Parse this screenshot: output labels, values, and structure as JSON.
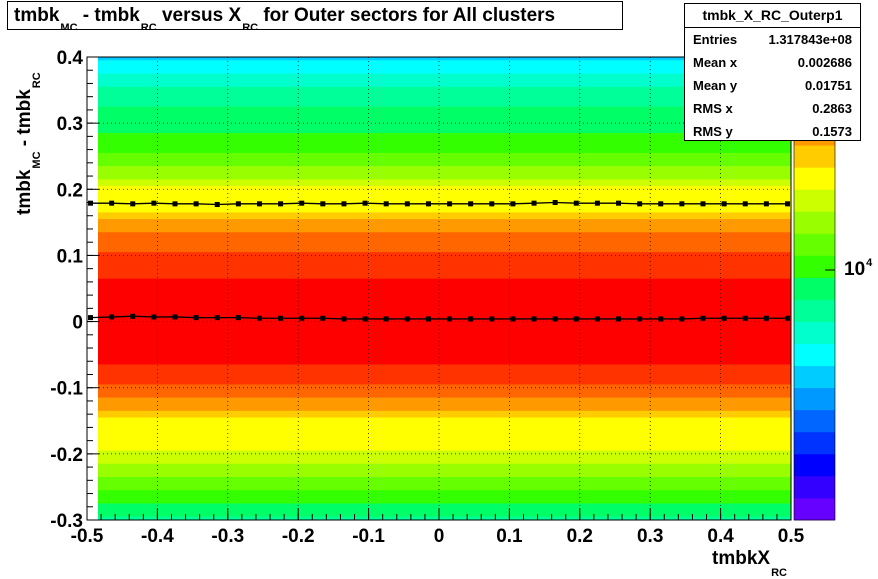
{
  "title": {
    "parts": [
      {
        "t": "tmbk",
        "sub": "MC"
      },
      {
        "t": " - tmbk",
        "sub": "RC"
      },
      {
        "t": " versus X",
        "sub": "RC"
      },
      {
        "t": " for Outer sectors for All clusters",
        "sub": ""
      }
    ]
  },
  "stats": {
    "name": "tmbk_X_RC_Outerp1",
    "rows": [
      {
        "label": "Entries",
        "value": "1.317843e+08"
      },
      {
        "label": "Mean x",
        "value": "0.002686"
      },
      {
        "label": "Mean y",
        "value": "0.01751"
      },
      {
        "label": "RMS x",
        "value": "0.2863"
      },
      {
        "label": "RMS y",
        "value": "0.1573"
      }
    ]
  },
  "chart_data": {
    "type": "heatmap",
    "xlabel": {
      "t": "tmbkX",
      "sub": "RC"
    },
    "ylabel": {
      "t1": "tmbk",
      "sub1": "MC",
      "t2": " - tmbk",
      "sub2": "RC"
    },
    "xlim": [
      -0.5,
      0.5
    ],
    "ylim": [
      -0.3,
      0.4
    ],
    "x_ticks": [
      -0.5,
      -0.4,
      -0.3,
      -0.2,
      -0.1,
      0,
      0.1,
      0.2,
      0.3,
      0.4,
      0.5
    ],
    "x_tick_labels": [
      "-0.5",
      "-0.4",
      "-0.3",
      "-0.2",
      "-0.1",
      "0",
      "0.1",
      "0.2",
      "0.3",
      "0.4",
      "0.5"
    ],
    "y_ticks": [
      -0.3,
      -0.2,
      -0.1,
      0,
      0.1,
      0.2,
      0.3,
      0.4
    ],
    "y_tick_labels": [
      "-0.3",
      "-0.2",
      "-0.1",
      "0",
      "0.1",
      "0.2",
      "0.3",
      "0.4"
    ],
    "grid": true,
    "z_log_scale": true,
    "z_label": {
      "base": "10",
      "exp": "4"
    },
    "palette": [
      "#6600ff",
      "#3300ff",
      "#0000ff",
      "#0033ff",
      "#0066ff",
      "#0099ff",
      "#00ccff",
      "#00ffff",
      "#00ffcc",
      "#00ff99",
      "#00ff66",
      "#33ff00",
      "#66ff00",
      "#99ff00",
      "#ccff00",
      "#ffff00",
      "#ffcc00",
      "#ff9900",
      "#ff6600",
      "#ff3300",
      "#ff0000"
    ],
    "y_rows": [
      {
        "y0": 0.395,
        "y1": 0.4,
        "level": 6
      },
      {
        "y0": 0.385,
        "y1": 0.395,
        "level": 7
      },
      {
        "y0": 0.375,
        "y1": 0.385,
        "level": 7
      },
      {
        "y0": 0.365,
        "y1": 0.375,
        "level": 8
      },
      {
        "y0": 0.355,
        "y1": 0.365,
        "level": 8
      },
      {
        "y0": 0.345,
        "y1": 0.355,
        "level": 9
      },
      {
        "y0": 0.335,
        "y1": 0.345,
        "level": 9
      },
      {
        "y0": 0.325,
        "y1": 0.335,
        "level": 9
      },
      {
        "y0": 0.315,
        "y1": 0.325,
        "level": 10
      },
      {
        "y0": 0.305,
        "y1": 0.315,
        "level": 10
      },
      {
        "y0": 0.295,
        "y1": 0.305,
        "level": 10
      },
      {
        "y0": 0.285,
        "y1": 0.295,
        "level": 10
      },
      {
        "y0": 0.275,
        "y1": 0.285,
        "level": 11
      },
      {
        "y0": 0.265,
        "y1": 0.275,
        "level": 11
      },
      {
        "y0": 0.255,
        "y1": 0.265,
        "level": 11
      },
      {
        "y0": 0.245,
        "y1": 0.255,
        "level": 12
      },
      {
        "y0": 0.235,
        "y1": 0.245,
        "level": 12
      },
      {
        "y0": 0.225,
        "y1": 0.235,
        "level": 13
      },
      {
        "y0": 0.215,
        "y1": 0.225,
        "level": 13
      },
      {
        "y0": 0.205,
        "y1": 0.215,
        "level": 14
      },
      {
        "y0": 0.195,
        "y1": 0.205,
        "level": 15
      },
      {
        "y0": 0.185,
        "y1": 0.195,
        "level": 15
      },
      {
        "y0": 0.175,
        "y1": 0.185,
        "level": 15
      },
      {
        "y0": 0.165,
        "y1": 0.175,
        "level": 15
      },
      {
        "y0": 0.155,
        "y1": 0.165,
        "level": 16
      },
      {
        "y0": 0.145,
        "y1": 0.155,
        "level": 17
      },
      {
        "y0": 0.135,
        "y1": 0.145,
        "level": 17
      },
      {
        "y0": 0.125,
        "y1": 0.135,
        "level": 18
      },
      {
        "y0": 0.115,
        "y1": 0.125,
        "level": 18
      },
      {
        "y0": 0.105,
        "y1": 0.115,
        "level": 18
      },
      {
        "y0": 0.095,
        "y1": 0.105,
        "level": 19
      },
      {
        "y0": 0.085,
        "y1": 0.095,
        "level": 19
      },
      {
        "y0": 0.075,
        "y1": 0.085,
        "level": 19
      },
      {
        "y0": 0.065,
        "y1": 0.075,
        "level": 19
      },
      {
        "y0": -0.065,
        "y1": 0.065,
        "level": 20
      },
      {
        "y0": -0.075,
        "y1": -0.065,
        "level": 19
      },
      {
        "y0": -0.085,
        "y1": -0.075,
        "level": 19
      },
      {
        "y0": -0.095,
        "y1": -0.085,
        "level": 19
      },
      {
        "y0": -0.105,
        "y1": -0.095,
        "level": 18
      },
      {
        "y0": -0.115,
        "y1": -0.105,
        "level": 18
      },
      {
        "y0": -0.125,
        "y1": -0.115,
        "level": 17
      },
      {
        "y0": -0.135,
        "y1": -0.125,
        "level": 17
      },
      {
        "y0": -0.145,
        "y1": -0.135,
        "level": 16
      },
      {
        "y0": -0.155,
        "y1": -0.145,
        "level": 15
      },
      {
        "y0": -0.165,
        "y1": -0.155,
        "level": 15
      },
      {
        "y0": -0.175,
        "y1": -0.165,
        "level": 15
      },
      {
        "y0": -0.185,
        "y1": -0.175,
        "level": 15
      },
      {
        "y0": -0.195,
        "y1": -0.185,
        "level": 15
      },
      {
        "y0": -0.205,
        "y1": -0.195,
        "level": 14
      },
      {
        "y0": -0.215,
        "y1": -0.205,
        "level": 14
      },
      {
        "y0": -0.225,
        "y1": -0.215,
        "level": 13
      },
      {
        "y0": -0.235,
        "y1": -0.225,
        "level": 13
      },
      {
        "y0": -0.245,
        "y1": -0.235,
        "level": 12
      },
      {
        "y0": -0.255,
        "y1": -0.245,
        "level": 12
      },
      {
        "y0": -0.265,
        "y1": -0.255,
        "level": 11
      },
      {
        "y0": -0.275,
        "y1": -0.265,
        "level": 11
      },
      {
        "y0": -0.285,
        "y1": -0.275,
        "level": 10
      },
      {
        "y0": -0.295,
        "y1": -0.285,
        "level": 10
      },
      {
        "y0": -0.3,
        "y1": -0.295,
        "level": 9
      }
    ],
    "series": [
      {
        "values": [
          [
            -0.495,
            0.006
          ],
          [
            -0.465,
            0.007
          ],
          [
            -0.435,
            0.008
          ],
          [
            -0.405,
            0.007
          ],
          [
            -0.375,
            0.007
          ],
          [
            -0.345,
            0.006
          ],
          [
            -0.315,
            0.006
          ],
          [
            -0.285,
            0.006
          ],
          [
            -0.255,
            0.005
          ],
          [
            -0.225,
            0.005
          ],
          [
            -0.195,
            0.005
          ],
          [
            -0.165,
            0.005
          ],
          [
            -0.135,
            0.004
          ],
          [
            -0.105,
            0.004
          ],
          [
            -0.075,
            0.004
          ],
          [
            -0.045,
            0.004
          ],
          [
            -0.015,
            0.004
          ],
          [
            0.015,
            0.004
          ],
          [
            0.045,
            0.004
          ],
          [
            0.075,
            0.004
          ],
          [
            0.105,
            0.004
          ],
          [
            0.135,
            0.004
          ],
          [
            0.165,
            0.004
          ],
          [
            0.195,
            0.004
          ],
          [
            0.225,
            0.004
          ],
          [
            0.255,
            0.004
          ],
          [
            0.285,
            0.004
          ],
          [
            0.315,
            0.004
          ],
          [
            0.345,
            0.004
          ],
          [
            0.375,
            0.005
          ],
          [
            0.405,
            0.005
          ],
          [
            0.435,
            0.005
          ],
          [
            0.465,
            0.005
          ],
          [
            0.495,
            0.005
          ]
        ]
      },
      {
        "values": [
          [
            -0.495,
            0.179
          ],
          [
            -0.465,
            0.179
          ],
          [
            -0.435,
            0.178
          ],
          [
            -0.405,
            0.179
          ],
          [
            -0.375,
            0.178
          ],
          [
            -0.345,
            0.178
          ],
          [
            -0.315,
            0.177
          ],
          [
            -0.285,
            0.178
          ],
          [
            -0.255,
            0.178
          ],
          [
            -0.225,
            0.178
          ],
          [
            -0.195,
            0.179
          ],
          [
            -0.165,
            0.178
          ],
          [
            -0.135,
            0.178
          ],
          [
            -0.105,
            0.179
          ],
          [
            -0.075,
            0.178
          ],
          [
            -0.045,
            0.178
          ],
          [
            -0.015,
            0.178
          ],
          [
            0.015,
            0.178
          ],
          [
            0.045,
            0.178
          ],
          [
            0.075,
            0.178
          ],
          [
            0.105,
            0.178
          ],
          [
            0.135,
            0.179
          ],
          [
            0.165,
            0.18
          ],
          [
            0.195,
            0.179
          ],
          [
            0.225,
            0.179
          ],
          [
            0.255,
            0.179
          ],
          [
            0.285,
            0.178
          ],
          [
            0.315,
            0.178
          ],
          [
            0.345,
            0.178
          ],
          [
            0.375,
            0.178
          ],
          [
            0.405,
            0.178
          ],
          [
            0.435,
            0.178
          ],
          [
            0.465,
            0.178
          ],
          [
            0.495,
            0.178
          ]
        ]
      }
    ]
  }
}
